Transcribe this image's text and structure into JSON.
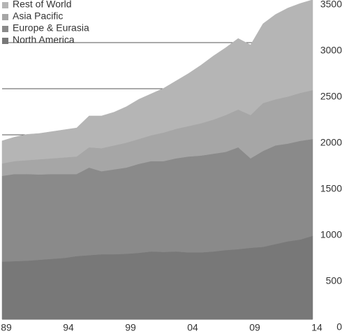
{
  "chart_data": {
    "type": "stacked-area",
    "x": [
      1989,
      1990,
      1991,
      1992,
      1993,
      1994,
      1995,
      1996,
      1997,
      1998,
      1999,
      2000,
      2001,
      2002,
      2003,
      2004,
      2005,
      2006,
      2007,
      2008,
      2009,
      2010,
      2011,
      2012,
      2013,
      2014
    ],
    "series": [
      {
        "name": "North America",
        "color": "#787878",
        "values": [
          625,
          630,
          635,
          645,
          655,
          665,
          685,
          695,
          705,
          705,
          710,
          720,
          735,
          730,
          735,
          725,
          725,
          735,
          750,
          760,
          775,
          785,
          815,
          845,
          865,
          905
        ]
      },
      {
        "name": "Europe & Eurasia",
        "color": "#8a8a8a",
        "values": [
          930,
          945,
          940,
          925,
          920,
          910,
          890,
          950,
          900,
          920,
          935,
          965,
          980,
          985,
          1010,
          1040,
          1050,
          1060,
          1065,
          1105,
          970,
          1040,
          1070,
          1060,
          1070,
          1050
        ]
      },
      {
        "name": "Asia Pacific",
        "color": "#a6a6a6",
        "values": [
          135,
          140,
          150,
          165,
          170,
          180,
          190,
          220,
          250,
          260,
          270,
          270,
          280,
          310,
          320,
          330,
          350,
          370,
          400,
          410,
          470,
          520,
          500,
          510,
          520,
          530
        ]
      },
      {
        "name": "Rest of World",
        "color": "#b5b5b5",
        "values": [
          245,
          260,
          280,
          280,
          290,
          300,
          310,
          340,
          350,
          360,
          390,
          430,
          450,
          480,
          520,
          570,
          630,
          690,
          730,
          770,
          760,
          860,
          920,
          960,
          970,
          980
        ]
      }
    ],
    "xlim": [
      1989,
      2014
    ],
    "xticks": [
      {
        "value": 1989,
        "label": "89"
      },
      {
        "value": 1994,
        "label": "94"
      },
      {
        "value": 1999,
        "label": "99"
      },
      {
        "value": 2004,
        "label": "04"
      },
      {
        "value": 2009,
        "label": "09"
      },
      {
        "value": 2014,
        "label": "14"
      }
    ],
    "ylim": [
      0,
      3500
    ],
    "yticks": [
      0,
      500,
      1000,
      1500,
      2000,
      2500,
      3000,
      3500
    ],
    "grid": true
  }
}
